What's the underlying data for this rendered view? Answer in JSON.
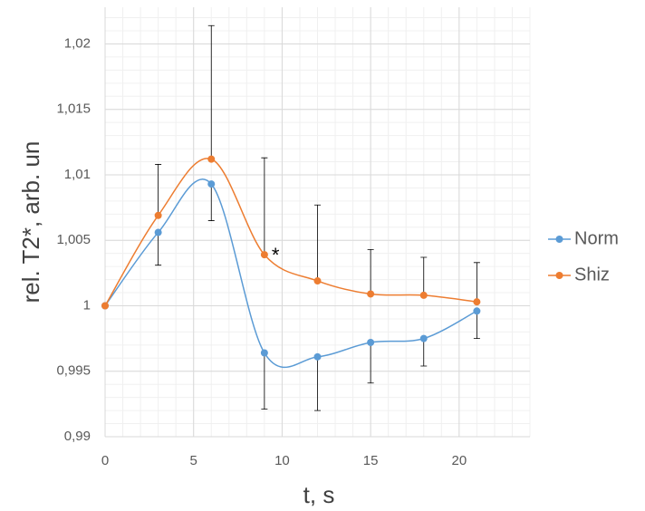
{
  "chart_data": {
    "type": "line",
    "x_label": "t, s",
    "y_label": "rel. T2*, arb. un",
    "x": [
      0,
      3,
      6,
      9,
      12,
      15,
      18,
      21
    ],
    "series": [
      {
        "name": "Norm",
        "color": "#5b9bd5",
        "values": [
          1.0,
          1.0056,
          1.0093,
          0.9964,
          0.9961,
          0.9972,
          0.9975,
          0.9996
        ],
        "errors": [
          0,
          0.0025,
          0.0028,
          0.0043,
          0.0041,
          0.0031,
          0.0021,
          0.0021
        ],
        "error_direction": "minus"
      },
      {
        "name": "Shiz",
        "color": "#ed7d31",
        "values": [
          1.0,
          1.0069,
          1.0112,
          1.0039,
          1.0019,
          1.0009,
          1.0008,
          1.0003
        ],
        "errors": [
          0,
          0.0039,
          0.0102,
          0.0074,
          0.0058,
          0.0034,
          0.0029,
          0.003
        ],
        "error_direction": "plus"
      }
    ],
    "annotations": [
      "*"
    ],
    "xlim": [
      0,
      24
    ],
    "xticks": [
      0,
      5,
      10,
      15,
      20
    ],
    "ylim": [
      0.99,
      1.0228
    ],
    "yticks": [
      {
        "value": 0.99,
        "label": "0,99"
      },
      {
        "value": 0.995,
        "label": "0,995"
      },
      1,
      {
        "value": 1.005,
        "label": "1,005"
      },
      {
        "value": 1.01,
        "label": "1,01"
      },
      {
        "value": 1.015,
        "label": "1,015"
      },
      {
        "value": 1.02,
        "label": "1,02"
      }
    ],
    "grid": true,
    "minor_grid": true,
    "smooth": true,
    "legend": "right"
  }
}
